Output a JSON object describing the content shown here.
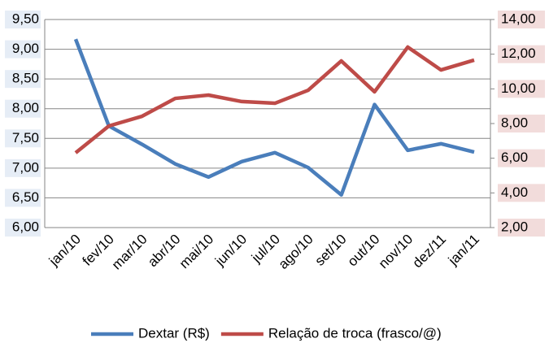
{
  "chart_data": {
    "type": "line",
    "categories": [
      "jan/10",
      "fev/10",
      "mar/10",
      "abr/10",
      "mai/10",
      "jun/10",
      "jul/10",
      "ago/10",
      "set/10",
      "out/10",
      "nov/10",
      "dez/11",
      "jan/11"
    ],
    "series": [
      {
        "name": "Dextar (R$)",
        "color": "#4a7ebb",
        "values": [
          9.17,
          7.71,
          7.4,
          7.07,
          6.85,
          7.11,
          7.26,
          7.01,
          6.55,
          8.07,
          7.3,
          7.41,
          7.27
        ]
      },
      {
        "name": "Relação de troca (frasco/@)",
        "color": "#be4b48",
        "axis": "y2",
        "values": [
          6.31,
          7.86,
          8.42,
          9.45,
          9.64,
          9.27,
          9.17,
          9.92,
          11.61,
          9.83,
          12.41,
          11.09,
          11.66
        ]
      }
    ],
    "ylim": [
      6.0,
      9.5
    ],
    "yticks": [
      {
        "value": 6.0,
        "label": "6,00"
      },
      {
        "value": 6.5,
        "label": "6,50"
      },
      {
        "value": 7.0,
        "label": "7,00"
      },
      {
        "value": 7.5,
        "label": "7,50"
      },
      {
        "value": 8.0,
        "label": "8,00"
      },
      {
        "value": 8.5,
        "label": "8,50"
      },
      {
        "value": 9.0,
        "label": "9,00"
      },
      {
        "value": 9.5,
        "label": "9,50"
      }
    ],
    "y2lim": [
      2.0,
      14.0
    ],
    "y2ticks": [
      {
        "value": 2.0,
        "label": "2,00"
      },
      {
        "value": 4.0,
        "label": "4,00"
      },
      {
        "value": 6.0,
        "label": "6,00"
      },
      {
        "value": 8.0,
        "label": "8,00"
      },
      {
        "value": 10.0,
        "label": "10,00"
      },
      {
        "value": 12.0,
        "label": "12,00"
      },
      {
        "value": 14.0,
        "label": "14,00"
      }
    ],
    "grid": true,
    "legend": "bottom"
  }
}
